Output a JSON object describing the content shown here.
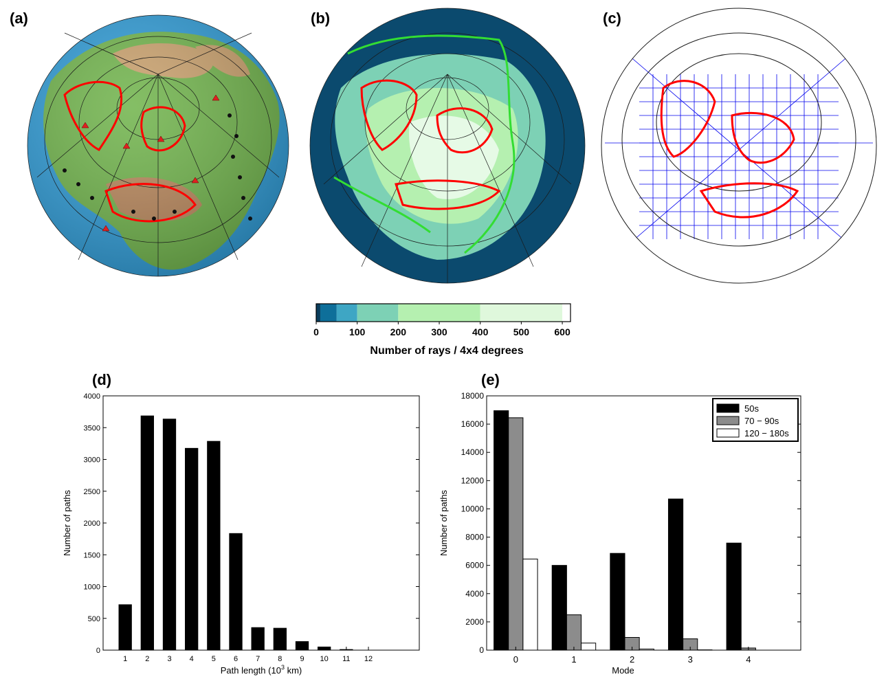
{
  "panels": {
    "a": "(a)",
    "b": "(b)",
    "c": "(c)",
    "d": "(d)",
    "e": "(e)"
  },
  "colors": {
    "ocean_a": "#2e9bd6",
    "land_a": "#6fb34a",
    "highland_a": "#c9a06b",
    "ocean_b": "#0b4a6e",
    "ray_low": "#5fb6b0",
    "ray_high": "#e6fae6",
    "red_outline": "#ff0000",
    "green_boundary": "#33dd33",
    "grid_blue": "#0000ee",
    "bar_black": "#000000",
    "bar_gray": "#8c8c8c",
    "bar_white": "#ffffff"
  },
  "colorbar": {
    "title": "Number of rays / 4x4 degrees",
    "ticks": [
      "0",
      "100",
      "200",
      "300",
      "400",
      "500",
      "600"
    ],
    "bins": [
      {
        "from": 0,
        "to": 10,
        "color": "#0a3d5c"
      },
      {
        "from": 10,
        "to": 50,
        "color": "#0e6f9a"
      },
      {
        "from": 50,
        "to": 100,
        "color": "#3ea6c4"
      },
      {
        "from": 100,
        "to": 200,
        "color": "#7dd1b5"
      },
      {
        "from": 200,
        "to": 400,
        "color": "#b5f0b0"
      },
      {
        "from": 400,
        "to": 600,
        "color": "#dff8dc"
      },
      {
        "from": 600,
        "to": 620,
        "color": "#ffffff"
      }
    ],
    "range": [
      0,
      620
    ]
  },
  "chart_data": [
    {
      "type": "bar",
      "panel": "(d)",
      "categories": [
        "1",
        "2",
        "3",
        "4",
        "5",
        "6",
        "7",
        "8",
        "9",
        "10",
        "11",
        "12"
      ],
      "values": [
        720,
        3690,
        3640,
        3180,
        3290,
        1840,
        360,
        350,
        140,
        55,
        15,
        5
      ],
      "xlabel_main": "Path length (10",
      "xlabel_sup": "3",
      "xlabel_tail": " km)",
      "ylabel": "Number of paths",
      "ylim": [
        0,
        4000
      ],
      "yticks": [
        "0",
        "500",
        "1000",
        "1500",
        "2000",
        "2500",
        "3000",
        "3500",
        "4000"
      ],
      "xlim": [
        0,
        14.3
      ]
    },
    {
      "type": "bar",
      "panel": "(e)",
      "categories": [
        "0",
        "1",
        "2",
        "3",
        "4"
      ],
      "series": [
        {
          "name": "50s",
          "values": [
            16950,
            6000,
            6850,
            10700,
            7580
          ]
        },
        {
          "name": "70 − 90s",
          "values": [
            16450,
            2500,
            900,
            800,
            150
          ]
        },
        {
          "name": "120 − 180s",
          "values": [
            6450,
            500,
            80,
            20,
            0
          ]
        }
      ],
      "xlabel": "Mode",
      "ylabel": "Number of paths",
      "ylim": [
        0,
        18000
      ],
      "yticks": [
        "0",
        "2000",
        "4000",
        "6000",
        "8000",
        "10000",
        "12000",
        "14000",
        "16000",
        "18000"
      ],
      "legend": "top-right"
    }
  ]
}
